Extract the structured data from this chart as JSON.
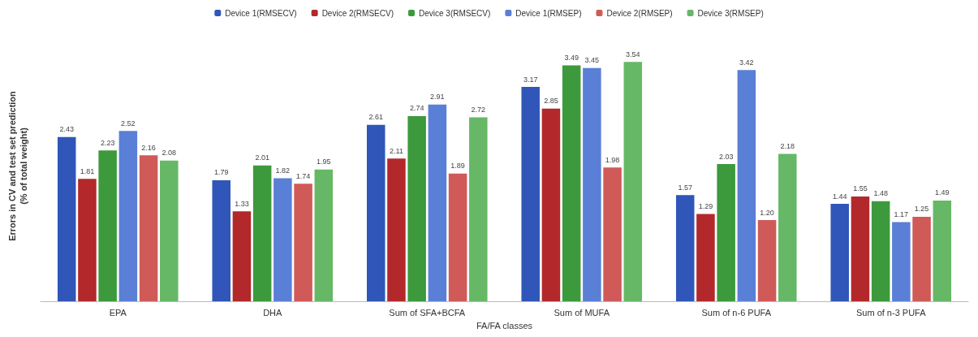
{
  "chart_data": {
    "type": "bar",
    "xlabel": "FA/FA classes",
    "ylabel": "Errors in CV and test set prediction\n(% of total weight)",
    "categories": [
      "EPA",
      "DHA",
      "Sum of SFA+BCFA",
      "Sum of MUFA",
      "Sum of n-6 PUFA",
      "Sum of n-3 PUFA"
    ],
    "series": [
      {
        "name": "Device 1(RMSECV)",
        "color": "#2f56b8",
        "values": [
          2.43,
          1.79,
          2.61,
          3.17,
          1.57,
          1.44
        ],
        "value_labels": [
          "2.43",
          "1.79",
          "2.61",
          "3.17",
          "1.57",
          "1.44"
        ]
      },
      {
        "name": "Device 2(RMSECV)",
        "color": "#b3282b",
        "values": [
          1.81,
          1.33,
          2.11,
          2.85,
          1.29,
          1.55
        ],
        "value_labels": [
          "1.81",
          "1.33",
          "2.11",
          "2.85",
          "1.29",
          "1.55"
        ]
      },
      {
        "name": "Device 3(RMSECV)",
        "color": "#3c9a3c",
        "values": [
          2.23,
          2.01,
          2.74,
          3.49,
          2.03,
          1.48
        ],
        "value_labels": [
          "2.23",
          "2.01",
          "2.74",
          "3.49",
          "2.03",
          "1.48"
        ]
      },
      {
        "name": "Device 1(RMSEP)",
        "color": "#5a7fd6",
        "values": [
          2.52,
          1.82,
          2.91,
          3.45,
          3.42,
          1.17
        ],
        "value_labels": [
          "2.52",
          "1.82",
          "2.91",
          "3.45",
          "3.42",
          "1.17"
        ]
      },
      {
        "name": "Device 2(RMSEP)",
        "color": "#d05a58",
        "values": [
          2.16,
          1.74,
          1.89,
          1.98,
          1.2,
          1.25
        ],
        "value_labels": [
          "2.16",
          "1.74",
          "1.89",
          "1.98",
          "1.20",
          "1.25"
        ]
      },
      {
        "name": "Device 3(RMSEP)",
        "color": "#66b866",
        "values": [
          2.08,
          1.95,
          2.72,
          3.54,
          2.18,
          1.49
        ],
        "value_labels": [
          "2.08",
          "1.95",
          "2.72",
          "3.54",
          "2.18",
          "1.49"
        ]
      }
    ],
    "grid": false,
    "legend": "top",
    "tick_labels": "x"
  }
}
